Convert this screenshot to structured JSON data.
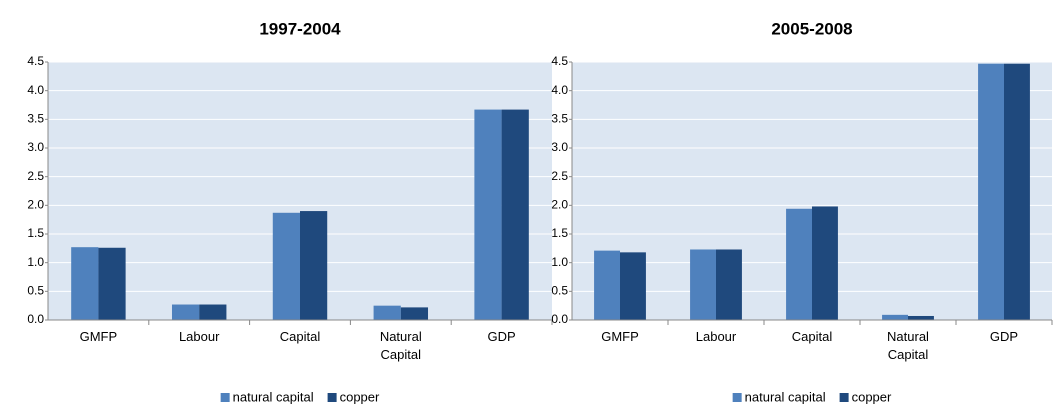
{
  "chart_data": [
    {
      "type": "bar",
      "title": "1997-2004",
      "categories": [
        "GMFP",
        "Labour",
        "Capital",
        "Natural Capital",
        "GDP"
      ],
      "series": [
        {
          "name": "natural capital",
          "color": "#4f81bd",
          "values": [
            1.27,
            0.27,
            1.87,
            0.25,
            3.67
          ]
        },
        {
          "name": "copper",
          "color": "#1f497d",
          "values": [
            1.26,
            0.27,
            1.9,
            0.22,
            3.67
          ]
        }
      ],
      "ylim": [
        0,
        4.5
      ],
      "yticks": [
        {
          "value": 0,
          "label": "0.0"
        },
        0.5,
        {
          "value": 1,
          "label": "1.0"
        },
        1.5,
        {
          "value": 2,
          "label": "2.0"
        },
        2.5,
        {
          "value": 3,
          "label": "3.0"
        },
        3.5,
        {
          "value": 4,
          "label": "4.0"
        },
        4.5
      ],
      "grid": true,
      "legend": "bottom"
    },
    {
      "type": "bar",
      "title": "2005-2008",
      "categories": [
        "GMFP",
        "Labour",
        "Capital",
        "Natural Capital",
        "GDP"
      ],
      "series": [
        {
          "name": "natural capital",
          "color": "#4f81bd",
          "values": [
            1.21,
            1.23,
            1.94,
            0.09,
            4.47
          ]
        },
        {
          "name": "copper",
          "color": "#1f497d",
          "values": [
            1.18,
            1.23,
            1.98,
            0.07,
            4.47
          ]
        }
      ],
      "ylim": [
        0,
        4.5
      ],
      "yticks": [
        {
          "value": 0,
          "label": "0.0"
        },
        0.5,
        {
          "value": 1,
          "label": "1.0"
        },
        1.5,
        {
          "value": 2,
          "label": "2.0"
        },
        2.5,
        {
          "value": 3,
          "label": "3.0"
        },
        3.5,
        {
          "value": 4,
          "label": "4.0"
        },
        4.5
      ],
      "grid": true,
      "legend": "bottom"
    }
  ]
}
